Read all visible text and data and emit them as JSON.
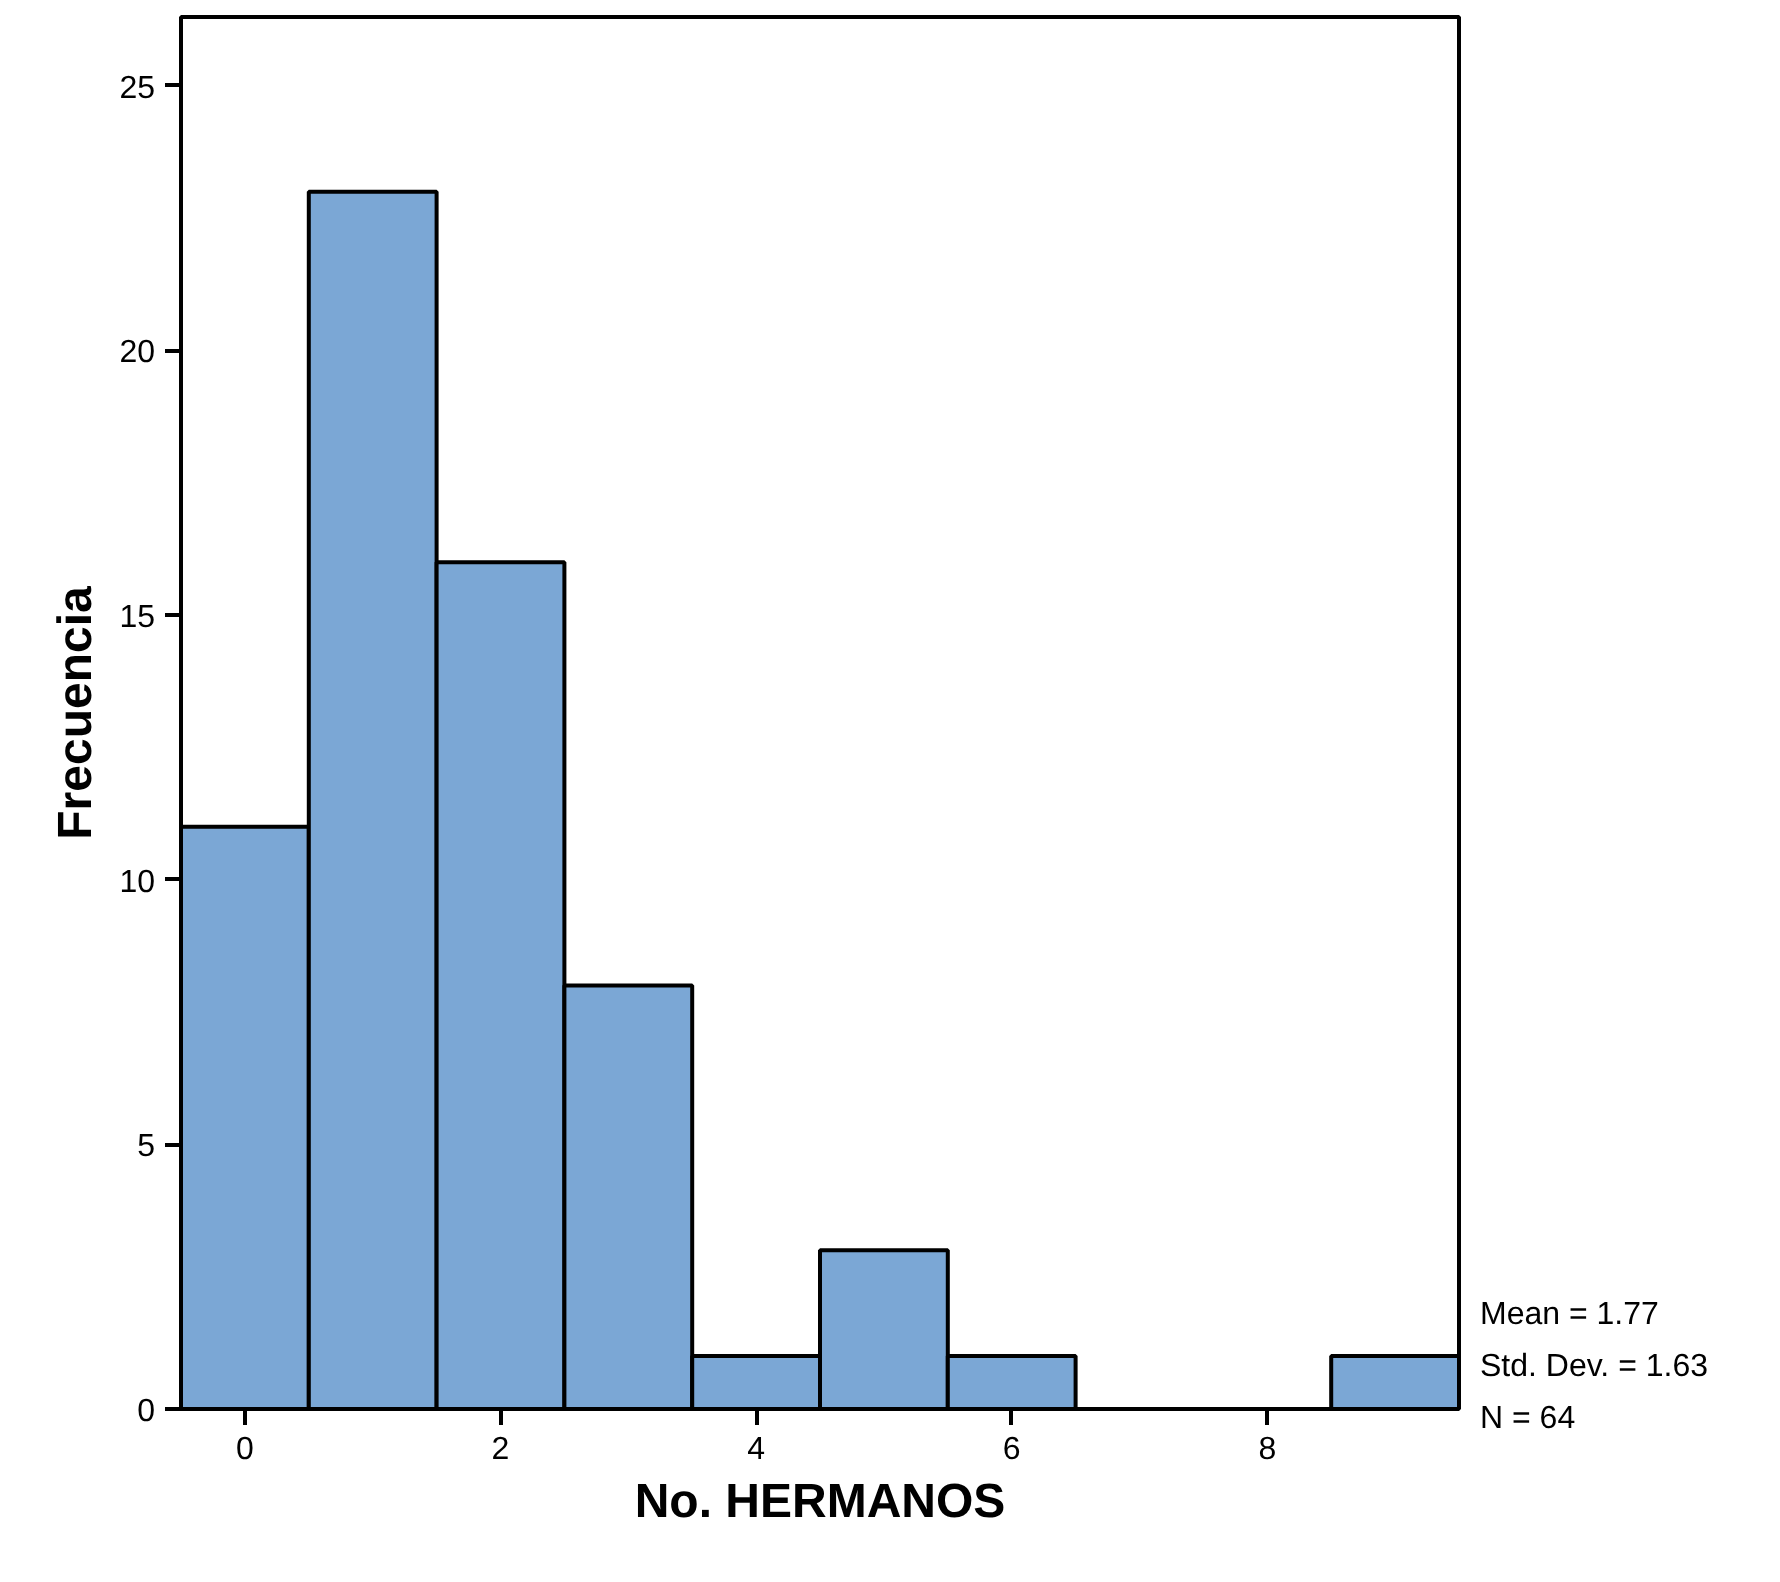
{
  "chart_data": {
    "type": "histogram",
    "xlabel": "No. HERMANOS",
    "ylabel": "Frecuencia",
    "bins": [
      -0.5,
      0.5,
      1.5,
      2.5,
      3.5,
      4.5,
      5.5,
      6.5,
      7.5,
      8.5,
      9.5
    ],
    "values": [
      11,
      23,
      16,
      8,
      1,
      3,
      1,
      0,
      0,
      1
    ],
    "color": "#7ba7d5",
    "xlim": [
      -0.5,
      9.5
    ],
    "ylim": [
      0,
      26.3
    ],
    "xticks": [
      0,
      2,
      4,
      6,
      8
    ],
    "yticks": [
      0,
      5,
      10,
      15,
      20,
      25
    ],
    "grid": false,
    "annotations": [
      "Mean = 1.77",
      "Std. Dev. = 1.63",
      "N = 64"
    ]
  }
}
